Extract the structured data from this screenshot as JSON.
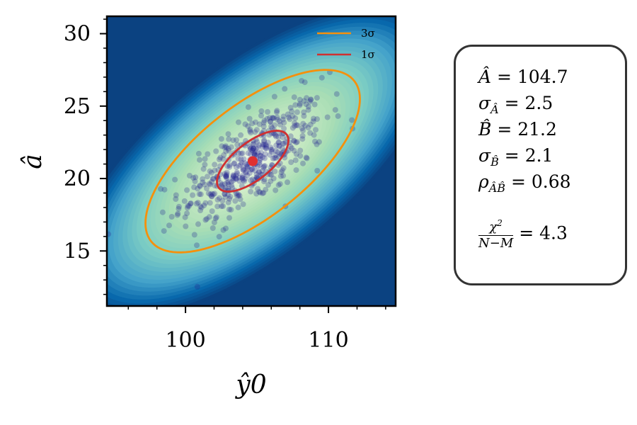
{
  "chart_data": {
    "type": "scatter",
    "xlabel": "ŷ0",
    "ylabel": "â",
    "xlim": [
      94.5,
      114.7
    ],
    "ylim": [
      11.2,
      31.2
    ],
    "xticks": [
      100,
      110
    ],
    "yticks": [
      15,
      20,
      25,
      30
    ],
    "x_minor_step": 2,
    "y_minor_step": 1,
    "center": {
      "x": 104.7,
      "y": 21.2,
      "color": "#e03030"
    },
    "ellipses": [
      {
        "name": "3σ",
        "sigma_level": 3,
        "color": "#f5900c"
      },
      {
        "name": "1σ",
        "sigma_level": 1,
        "color": "#d03030"
      }
    ],
    "density_background": {
      "colormap": "GnBu",
      "outer_color": "#0b4281",
      "inner_color": "#f7fcf0"
    },
    "scatter_color": "#23238f",
    "scatter_count": 500,
    "legend": {
      "position": "top-right",
      "entries": [
        "3σ",
        "1σ"
      ]
    }
  },
  "stats": {
    "A_hat_label": "Â",
    "A_hat_value": "104.7",
    "sigma_A_value": "2.5",
    "B_hat_label": "B̂",
    "B_hat_value": "21.2",
    "sigma_B_value": "2.1",
    "rho_value": "0.68",
    "chi2_value": "4.3"
  }
}
